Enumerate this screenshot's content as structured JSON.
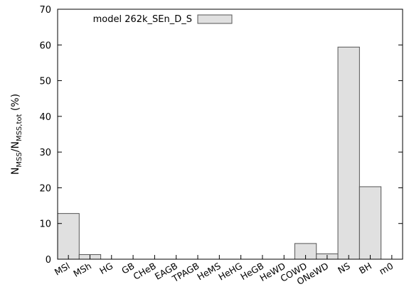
{
  "chart_data": {
    "type": "bar",
    "categories": [
      "MSl",
      "MSh",
      "HG",
      "GB",
      "CHeB",
      "EAGB",
      "TPAGB",
      "HeMS",
      "HeHG",
      "HeGB",
      "HeWD",
      "COWD",
      "ONeWD",
      "NS",
      "BH",
      "m0"
    ],
    "series": [
      {
        "name": "model 262k_SEn_D_S",
        "values": [
          12.8,
          1.3,
          0,
          0,
          0,
          0,
          0,
          0,
          0,
          0,
          0,
          4.4,
          1.5,
          59.4,
          20.3,
          0
        ]
      }
    ],
    "ylabel": {
      "main1": "N",
      "sub1": "MSS",
      "main2": "/N",
      "sub2": "MSS,tot",
      "unit": " (%)"
    },
    "ylim": [
      0,
      70
    ],
    "yticks": [
      0,
      10,
      20,
      30,
      40,
      50,
      60,
      70
    ],
    "legend_position": "top-left",
    "grid": false,
    "colors": {
      "bar_fill": "#e0e0e0",
      "bar_stroke": "#555555",
      "axis": "#000000"
    }
  }
}
